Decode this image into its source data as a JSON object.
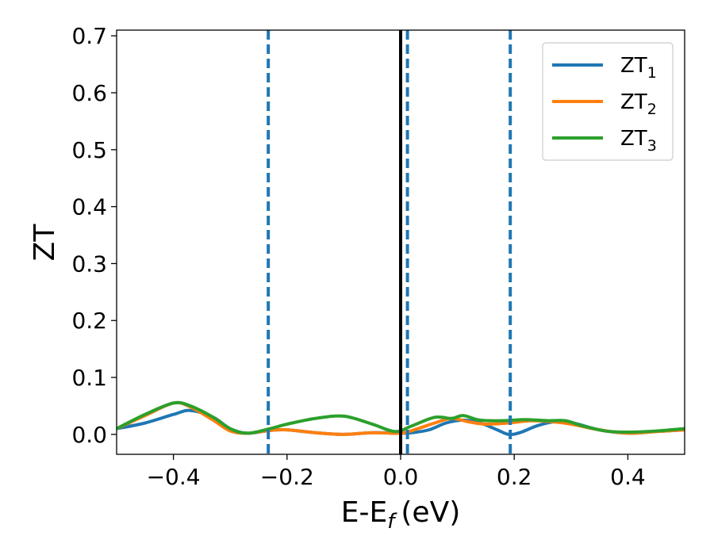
{
  "chart_data": {
    "type": "line",
    "xlabel": "E-E",
    "xlabel_sub": "f",
    "xlabel_unit": "(eV)",
    "ylabel": "ZT",
    "xlim": [
      -0.5,
      0.5
    ],
    "ylim": [
      -0.035,
      0.71
    ],
    "xticks": [
      -0.4,
      -0.2,
      0.0,
      0.2,
      0.4
    ],
    "xtick_labels": [
      "−0.4",
      "−0.2",
      "0.0",
      "0.2",
      "0.4"
    ],
    "yticks": [
      0.0,
      0.1,
      0.2,
      0.3,
      0.4,
      0.5,
      0.6,
      0.7
    ],
    "ytick_labels": [
      "0.0",
      "0.1",
      "0.2",
      "0.3",
      "0.4",
      "0.5",
      "0.6",
      "0.7"
    ],
    "grid": false,
    "legend_position": "top-right",
    "colors": {
      "zt1": "#1f77b4",
      "zt2": "#ff7f0e",
      "zt3": "#2ca02c",
      "fermi": "#000000",
      "dashed": "#1f77b4"
    },
    "vertical_lines": {
      "solid": [
        0.0
      ],
      "dashed": [
        -0.233,
        0.012,
        0.193
      ]
    },
    "series": [
      {
        "name": "ZT",
        "sub": "1",
        "color": "#1f77b4",
        "x": [
          -0.5,
          -0.45,
          -0.4,
          -0.37,
          -0.33,
          -0.3,
          -0.27,
          -0.23,
          -0.2,
          -0.15,
          -0.1,
          -0.05,
          0.0,
          0.02,
          0.05,
          0.08,
          0.11,
          0.14,
          0.17,
          0.19,
          0.21,
          0.24,
          0.27,
          0.3,
          0.35,
          0.4,
          0.45,
          0.5
        ],
        "y": [
          0.01,
          0.02,
          0.035,
          0.042,
          0.03,
          0.01,
          0.002,
          0.007,
          0.008,
          0.003,
          0.0,
          0.003,
          0.002,
          0.003,
          0.008,
          0.02,
          0.025,
          0.02,
          0.008,
          0.0,
          0.003,
          0.015,
          0.022,
          0.021,
          0.008,
          0.002,
          0.005,
          0.008
        ]
      },
      {
        "name": "ZT",
        "sub": "2",
        "color": "#ff7f0e",
        "x": [
          -0.5,
          -0.45,
          -0.4,
          -0.37,
          -0.33,
          -0.3,
          -0.27,
          -0.23,
          -0.2,
          -0.15,
          -0.1,
          -0.05,
          0.0,
          0.03,
          0.06,
          0.09,
          0.12,
          0.15,
          0.19,
          0.23,
          0.27,
          0.3,
          0.35,
          0.4,
          0.45,
          0.5
        ],
        "y": [
          0.01,
          0.033,
          0.055,
          0.048,
          0.025,
          0.006,
          0.002,
          0.007,
          0.008,
          0.003,
          0.0,
          0.003,
          0.002,
          0.01,
          0.02,
          0.028,
          0.022,
          0.018,
          0.02,
          0.024,
          0.022,
          0.018,
          0.008,
          0.002,
          0.005,
          0.008
        ]
      },
      {
        "name": "ZT",
        "sub": "3",
        "color": "#2ca02c",
        "x": [
          -0.5,
          -0.45,
          -0.4,
          -0.37,
          -0.33,
          -0.3,
          -0.27,
          -0.23,
          -0.2,
          -0.15,
          -0.1,
          -0.05,
          -0.01,
          0.02,
          0.06,
          0.09,
          0.11,
          0.14,
          0.18,
          0.22,
          0.26,
          0.29,
          0.32,
          0.36,
          0.4,
          0.45,
          0.5
        ],
        "y": [
          0.01,
          0.035,
          0.055,
          0.05,
          0.03,
          0.01,
          0.002,
          0.01,
          0.018,
          0.028,
          0.032,
          0.018,
          0.005,
          0.015,
          0.03,
          0.028,
          0.033,
          0.025,
          0.024,
          0.026,
          0.024,
          0.024,
          0.015,
          0.006,
          0.004,
          0.006,
          0.01
        ]
      }
    ]
  }
}
